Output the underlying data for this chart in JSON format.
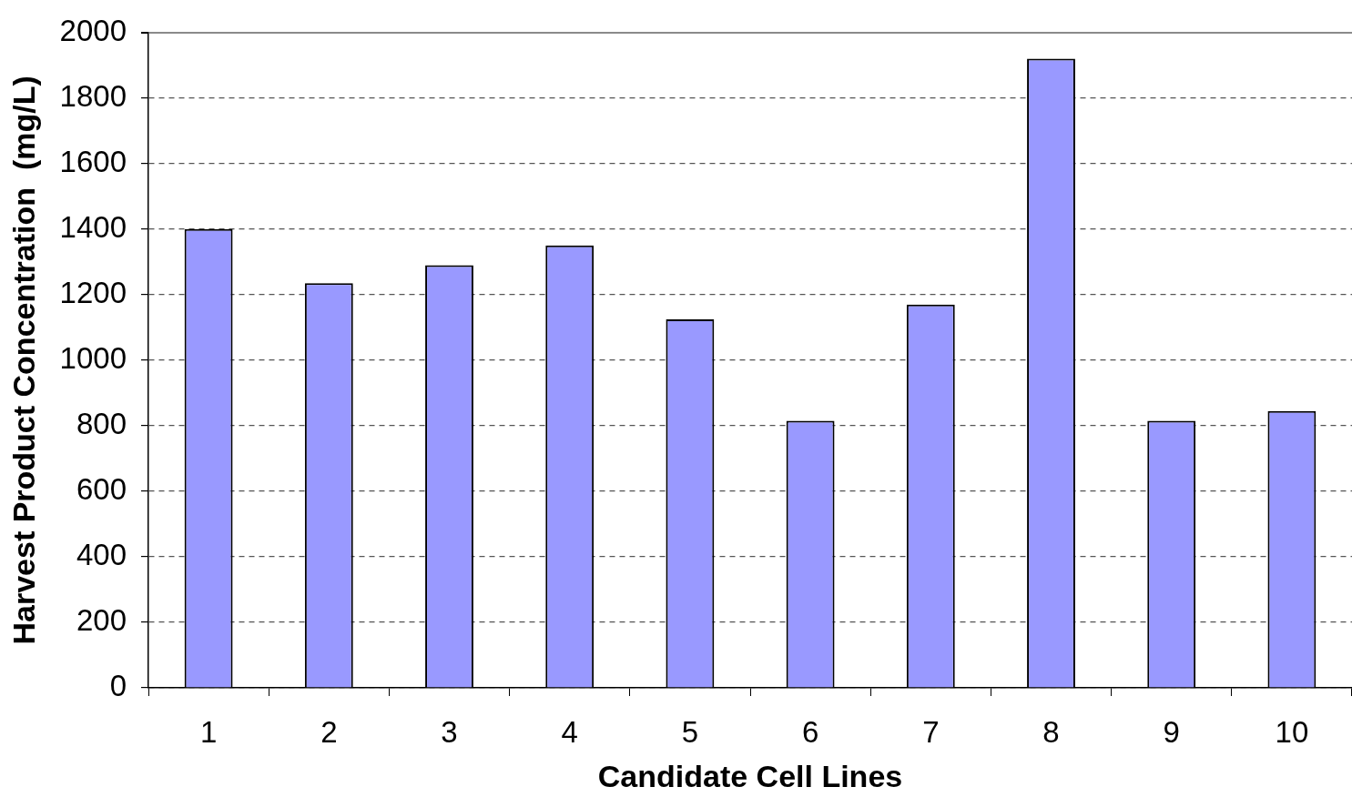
{
  "chart_data": {
    "type": "bar",
    "xlabel": "Candidate Cell Lines",
    "ylabel": "Harvest Product Concentration  (mg/L)",
    "categories": [
      "1",
      "2",
      "3",
      "4",
      "5",
      "6",
      "7",
      "8",
      "9",
      "10"
    ],
    "values": [
      1400,
      1235,
      1290,
      1350,
      1125,
      815,
      1170,
      1920,
      815,
      845
    ],
    "color": "#9999ff",
    "ylim": [
      0,
      2000
    ],
    "yticks": [
      0,
      200,
      400,
      600,
      800,
      1000,
      1200,
      1400,
      1600,
      1800,
      2000
    ],
    "grid": "y"
  }
}
